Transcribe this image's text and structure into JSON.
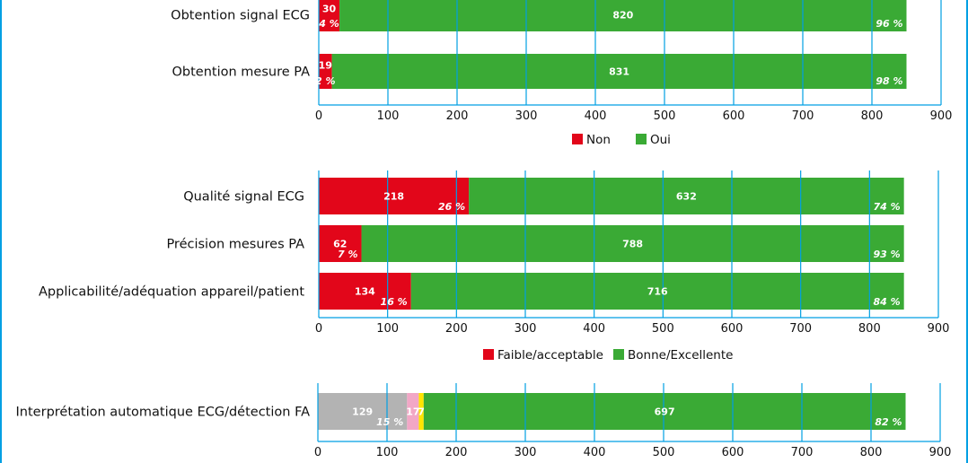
{
  "colors": {
    "red": "#e2061a",
    "green": "#3aaa35",
    "grey": "#b3b3b3",
    "pink": "#f2a7c6",
    "yellow": "#ffe500",
    "axis": "#009fe3",
    "frame": "#009fe3"
  },
  "chart_data": [
    {
      "type": "bar",
      "orientation": "horizontal",
      "stacked": true,
      "categories": [
        "Obtention signal ECG",
        "Obtention mesure PA"
      ],
      "series": [
        {
          "name": "Non",
          "color": "#e2061a",
          "values": [
            30,
            19
          ],
          "labels": [
            "30",
            "19"
          ],
          "percents": [
            "4 %",
            "2 %"
          ]
        },
        {
          "name": "Oui",
          "color": "#3aaa35",
          "values": [
            820,
            831
          ],
          "labels": [
            "820",
            "831"
          ],
          "percents": [
            "96 %",
            "98 %"
          ]
        }
      ],
      "xlim": [
        0,
        900
      ],
      "xticks": [
        "0",
        "100",
        "200",
        "300",
        "400",
        "500",
        "600",
        "700",
        "800",
        "900"
      ],
      "legend": "bottom",
      "grid": "vertical"
    },
    {
      "type": "bar",
      "orientation": "horizontal",
      "stacked": true,
      "categories": [
        "Qualité signal ECG",
        "Précision mesures PA",
        "Applicabilité/adéquation appareil/patient"
      ],
      "series": [
        {
          "name": "Faible/acceptable",
          "color": "#e2061a",
          "values": [
            218,
            62,
            134
          ],
          "labels": [
            "218",
            "62",
            "134"
          ],
          "percents": [
            "26 %",
            "7 %",
            "16 %"
          ]
        },
        {
          "name": "Bonne/Excellente",
          "color": "#3aaa35",
          "values": [
            632,
            788,
            716
          ],
          "labels": [
            "632",
            "788",
            "716"
          ],
          "percents": [
            "74 %",
            "93 %",
            "84 %"
          ]
        }
      ],
      "xlim": [
        0,
        900
      ],
      "xticks": [
        "0",
        "100",
        "200",
        "300",
        "400",
        "500",
        "600",
        "700",
        "800",
        "900"
      ],
      "legend": "bottom",
      "grid": "vertical"
    },
    {
      "type": "bar",
      "orientation": "horizontal",
      "stacked": true,
      "categories": [
        "Interprétation automatique ECG/détection FA"
      ],
      "series": [
        {
          "color": "#b3b3b3",
          "values": [
            129
          ],
          "labels": [
            "129"
          ],
          "percents": [
            "15 %"
          ]
        },
        {
          "color": "#f2a7c6",
          "values": [
            17
          ],
          "labels": [
            "17"
          ],
          "percents": [
            ""
          ]
        },
        {
          "color": "#ffe500",
          "values": [
            7
          ],
          "labels": [
            "7"
          ],
          "percents": [
            ""
          ]
        },
        {
          "color": "#3aaa35",
          "values": [
            697
          ],
          "labels": [
            "697"
          ],
          "percents": [
            "82 %"
          ]
        }
      ],
      "xlim": [
        0,
        900
      ],
      "xticks": [
        "0",
        "100",
        "200",
        "300",
        "400",
        "500",
        "600",
        "700",
        "800",
        "900"
      ],
      "grid": "vertical"
    }
  ]
}
